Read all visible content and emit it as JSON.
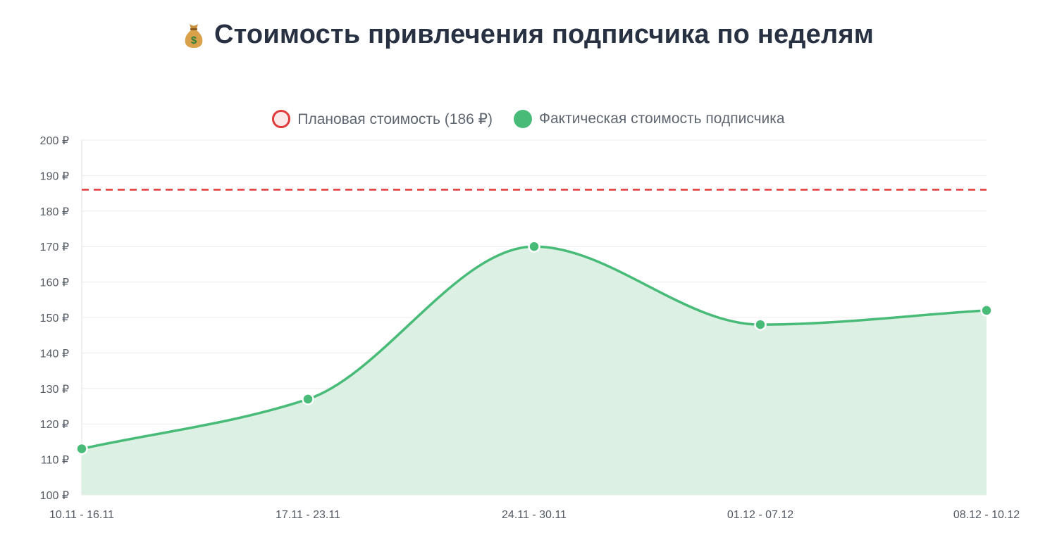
{
  "title": {
    "icon": "money-bag-icon",
    "text": "Стоимость привлечения подписчика по неделям"
  },
  "legend": {
    "plan_label": "Плановая стоимость (186 ₽)",
    "fact_label": "Фактическая стоимость подписчика"
  },
  "colors": {
    "plan_line": "#e03a3a",
    "fact_line": "#48bb78",
    "fact_fill": "#dcf1e3",
    "grid": "#ececec",
    "title": "#273142"
  },
  "chart_data": {
    "type": "area",
    "categories": [
      "10.11 - 16.11",
      "17.11 - 23.11",
      "24.11 - 30.11",
      "01.12 - 07.12",
      "08.12 - 10.12"
    ],
    "series": [
      {
        "name": "Фактическая стоимость подписчика",
        "values": [
          113,
          127,
          170,
          148,
          152
        ]
      },
      {
        "name": "Плановая стоимость (186 ₽)",
        "values": [
          186,
          186,
          186,
          186,
          186
        ],
        "style": "dashed"
      }
    ],
    "ylim": [
      100,
      200
    ],
    "yticks": [
      100,
      110,
      120,
      130,
      140,
      150,
      160,
      170,
      180,
      190,
      200
    ],
    "ytick_suffix": " ₽",
    "grid": true,
    "legend_position": "top-center"
  }
}
